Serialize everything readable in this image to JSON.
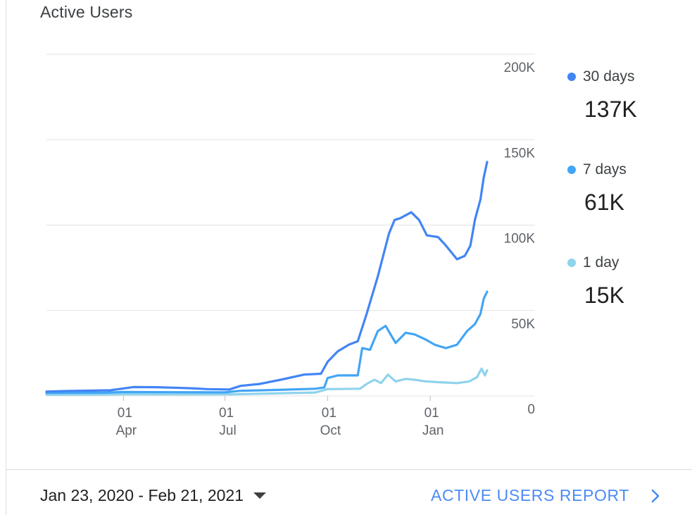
{
  "card": {
    "title": "Active Users"
  },
  "chart_data": {
    "type": "line",
    "title": "Active Users",
    "x_axis": {
      "type": "date",
      "range": [
        "2020-01-23",
        "2021-02-21"
      ],
      "ticks": [
        {
          "date": "2020-04-01",
          "day": "01",
          "month": "Apr"
        },
        {
          "date": "2020-07-01",
          "day": "01",
          "month": "Jul"
        },
        {
          "date": "2020-10-01",
          "day": "01",
          "month": "Oct"
        },
        {
          "date": "2021-01-01",
          "day": "01",
          "month": "Jan"
        }
      ]
    },
    "y_axis": {
      "position": "right",
      "ylim": [
        0,
        200000
      ],
      "ticks": [
        {
          "value": 0,
          "label": "0"
        },
        {
          "value": 50000,
          "label": "50K"
        },
        {
          "value": 100000,
          "label": "100K"
        },
        {
          "value": 150000,
          "label": "150K"
        },
        {
          "value": 200000,
          "label": "200K"
        }
      ]
    },
    "grid": true,
    "legend": "right",
    "series": [
      {
        "name": "30 days",
        "color": "#4285f4",
        "points": [
          [
            "2020-01-23",
            2500
          ],
          [
            "2020-02-10",
            2900
          ],
          [
            "2020-03-20",
            3300
          ],
          [
            "2020-04-10",
            5200
          ],
          [
            "2020-05-01",
            5100
          ],
          [
            "2020-06-01",
            4500
          ],
          [
            "2020-06-15",
            4000
          ],
          [
            "2020-07-05",
            3800
          ],
          [
            "2020-07-15",
            5900
          ],
          [
            "2020-08-01",
            7000
          ],
          [
            "2020-08-20",
            9500
          ],
          [
            "2020-09-10",
            12500
          ],
          [
            "2020-09-25",
            13000
          ],
          [
            "2020-10-01",
            20000
          ],
          [
            "2020-10-10",
            26000
          ],
          [
            "2020-10-20",
            30000
          ],
          [
            "2020-10-28",
            32000
          ],
          [
            "2020-11-05",
            48000
          ],
          [
            "2020-11-15",
            70000
          ],
          [
            "2020-11-25",
            95000
          ],
          [
            "2020-11-30",
            103000
          ],
          [
            "2020-12-05",
            104000
          ],
          [
            "2020-12-15",
            107500
          ],
          [
            "2020-12-22",
            103000
          ],
          [
            "2020-12-29",
            94000
          ],
          [
            "2021-01-08",
            93000
          ],
          [
            "2021-01-15",
            88000
          ],
          [
            "2021-01-25",
            80000
          ],
          [
            "2021-02-01",
            82000
          ],
          [
            "2021-02-06",
            88000
          ],
          [
            "2021-02-10",
            103000
          ],
          [
            "2021-02-15",
            115000
          ],
          [
            "2021-02-18",
            128000
          ],
          [
            "2021-02-21",
            137000
          ]
        ]
      },
      {
        "name": "7 days",
        "color": "#42a5f5",
        "points": [
          [
            "2020-01-23",
            1800
          ],
          [
            "2020-03-15",
            1900
          ],
          [
            "2020-04-01",
            2300
          ],
          [
            "2020-05-15",
            2200
          ],
          [
            "2020-07-01",
            2100
          ],
          [
            "2020-07-15",
            3000
          ],
          [
            "2020-08-15",
            3500
          ],
          [
            "2020-09-20",
            4200
          ],
          [
            "2020-09-28",
            5000
          ],
          [
            "2020-10-01",
            10500
          ],
          [
            "2020-10-10",
            12000
          ],
          [
            "2020-10-28",
            12000
          ],
          [
            "2020-11-01",
            28000
          ],
          [
            "2020-11-08",
            27000
          ],
          [
            "2020-11-15",
            38000
          ],
          [
            "2020-11-22",
            41000
          ],
          [
            "2020-12-01",
            31000
          ],
          [
            "2020-12-10",
            37000
          ],
          [
            "2020-12-18",
            36000
          ],
          [
            "2020-12-28",
            33000
          ],
          [
            "2021-01-05",
            30000
          ],
          [
            "2021-01-15",
            28000
          ],
          [
            "2021-01-25",
            30000
          ],
          [
            "2021-02-03",
            38000
          ],
          [
            "2021-02-10",
            42000
          ],
          [
            "2021-02-15",
            48000
          ],
          [
            "2021-02-18",
            57000
          ],
          [
            "2021-02-21",
            61000
          ]
        ]
      },
      {
        "name": "1 day",
        "color": "#8fd3ec",
        "points": [
          [
            "2020-01-23",
            800
          ],
          [
            "2020-03-01",
            800
          ],
          [
            "2020-04-01",
            1000
          ],
          [
            "2020-06-01",
            900
          ],
          [
            "2020-07-10",
            1000
          ],
          [
            "2020-08-15",
            1500
          ],
          [
            "2020-09-20",
            2000
          ],
          [
            "2020-10-01",
            4000
          ],
          [
            "2020-10-30",
            4200
          ],
          [
            "2020-11-05",
            7000
          ],
          [
            "2020-11-12",
            9500
          ],
          [
            "2020-11-18",
            7500
          ],
          [
            "2020-11-24",
            12500
          ],
          [
            "2020-12-01",
            8500
          ],
          [
            "2020-12-10",
            10000
          ],
          [
            "2020-12-18",
            9500
          ],
          [
            "2020-12-28",
            8500
          ],
          [
            "2021-01-10",
            8000
          ],
          [
            "2021-01-25",
            7500
          ],
          [
            "2021-02-05",
            8500
          ],
          [
            "2021-02-12",
            11000
          ],
          [
            "2021-02-16",
            16000
          ],
          [
            "2021-02-19",
            12000
          ],
          [
            "2021-02-21",
            15000
          ]
        ]
      }
    ]
  },
  "legend": [
    {
      "label": "30 days",
      "value": "137K",
      "color": "#4285f4"
    },
    {
      "label": "7 days",
      "value": "61K",
      "color": "#42a5f5"
    },
    {
      "label": "1 day",
      "value": "15K",
      "color": "#8fd3ec"
    }
  ],
  "footer": {
    "date_range": "Jan 23, 2020 - Feb 21, 2021",
    "report_link": "ACTIVE USERS REPORT"
  },
  "icons": {
    "dropdown": "caret-down-icon",
    "next": "chevron-right-icon"
  }
}
